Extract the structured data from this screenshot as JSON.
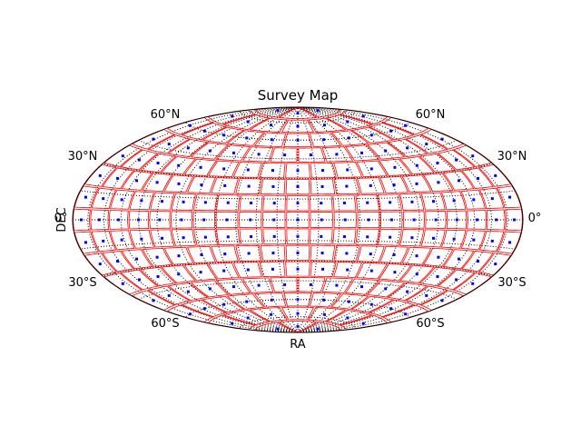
{
  "chart_data": {
    "type": "scatter",
    "projection": "hammer",
    "title": "Survey Map",
    "xlabel": "RA",
    "ylabel": "DEC",
    "grid": true,
    "colors": {
      "grid": "#000000",
      "field_outline": "#ff0000",
      "points": "#0000ff",
      "frame": "#000000"
    },
    "lat_tick_labels": {
      "north_60": "60°N",
      "north_30": "30°N",
      "equator": "0°",
      "south_30": "30°S",
      "south_60": "60°S"
    },
    "graticule_spacing_deg": 15,
    "field_rows": [
      {
        "dec": 0,
        "count": 21,
        "height_deg": 11
      },
      {
        "dec": 12,
        "count": 21,
        "height_deg": 11
      },
      {
        "dec": -12,
        "count": 21,
        "height_deg": 11
      },
      {
        "dec": 24,
        "count": 19,
        "height_deg": 11
      },
      {
        "dec": -24,
        "count": 19,
        "height_deg": 11
      },
      {
        "dec": 36,
        "count": 17,
        "height_deg": 11
      },
      {
        "dec": -36,
        "count": 17,
        "height_deg": 11
      },
      {
        "dec": 48,
        "count": 14,
        "height_deg": 11
      },
      {
        "dec": -48,
        "count": 14,
        "height_deg": 11
      },
      {
        "dec": 60,
        "count": 11,
        "height_deg": 11
      },
      {
        "dec": -60,
        "count": 11,
        "height_deg": 11
      },
      {
        "dec": 72,
        "count": 7,
        "height_deg": 11
      },
      {
        "dec": -72,
        "count": 7,
        "height_deg": 11
      },
      {
        "dec": 84,
        "count": 3,
        "height_deg": 10
      },
      {
        "dec": -84,
        "count": 3,
        "height_deg": 10
      }
    ]
  }
}
